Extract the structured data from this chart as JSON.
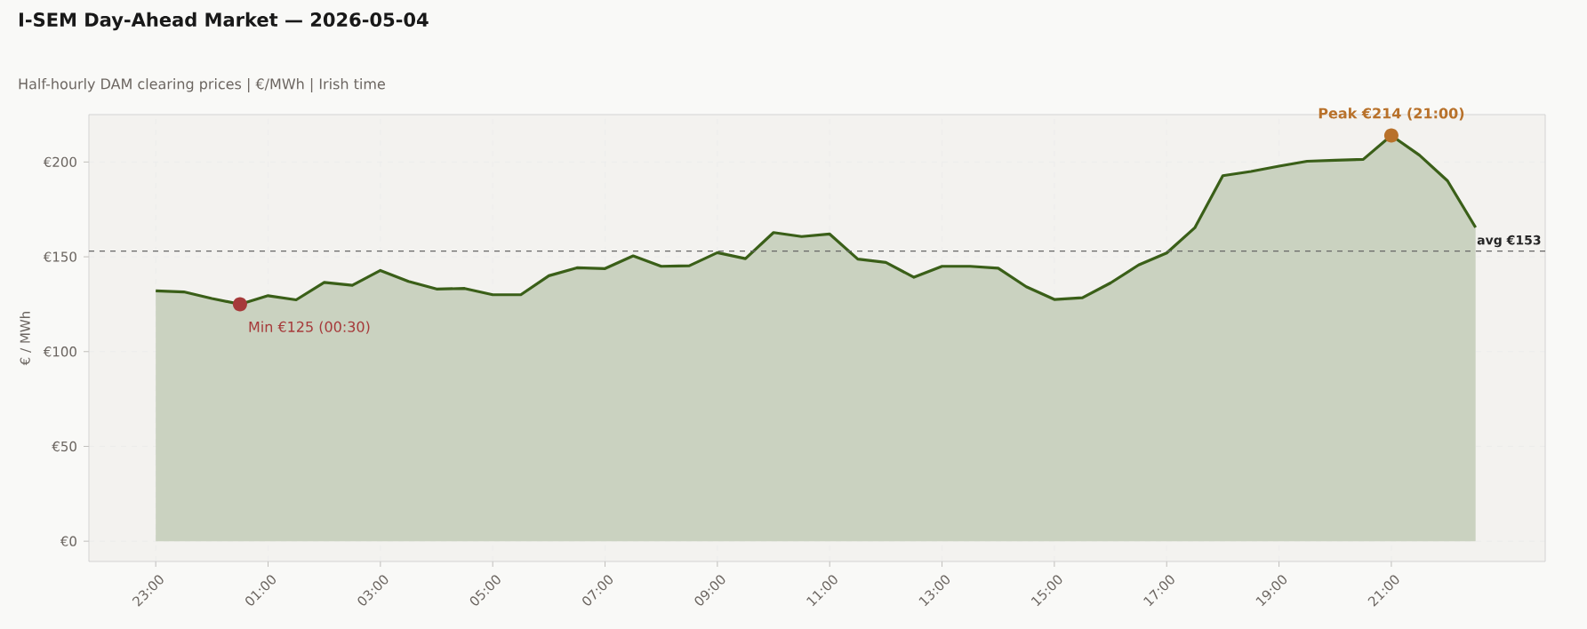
{
  "chart_data": {
    "type": "area",
    "title": "I-SEM Day-Ahead Market — 2026-05-04",
    "subtitle": "Half-hourly DAM clearing prices  |  €/MWh  |  Irish time",
    "ylabel": "€ / MWh",
    "categories": [
      "23:00",
      null,
      null,
      null,
      "01:00",
      null,
      null,
      null,
      "03:00",
      null,
      null,
      null,
      "05:00",
      null,
      null,
      null,
      "07:00",
      null,
      null,
      null,
      "09:00",
      null,
      null,
      null,
      "11:00",
      null,
      null,
      null,
      "13:00",
      null,
      null,
      null,
      "15:00",
      null,
      null,
      null,
      "17:00",
      null,
      null,
      null,
      "19:00",
      null,
      null,
      null,
      "21:00",
      null,
      null,
      null
    ],
    "series": [
      {
        "color": "#3a5f18",
        "values": [
          132,
          131.5,
          128,
          125,
          129.5,
          127.3,
          136.5,
          135,
          142.8,
          137,
          133,
          133.3,
          130,
          130,
          140,
          144.2,
          143.8,
          150.5,
          145,
          145.3,
          152.2,
          149,
          162.8,
          160.7,
          162,
          148.8,
          147,
          139.2,
          145,
          145,
          144,
          134.2,
          127.5,
          128.4,
          136.2,
          145.7,
          152,
          165.3,
          192.8,
          195,
          197.8,
          200.4,
          200.9,
          201.4,
          214,
          203.6,
          190.1,
          165.5
        ]
      }
    ],
    "ylim": [
      -10.7,
      225
    ],
    "yticks": [
      {
        "value": 0,
        "label": "€0"
      },
      {
        "value": 50,
        "label": "€50"
      },
      {
        "value": 100,
        "label": "€100"
      },
      {
        "value": 150,
        "label": "€150"
      },
      {
        "value": 200,
        "label": "€200"
      }
    ],
    "ref_lines": [
      {
        "axis": "y",
        "value": 153,
        "label": "avg €153",
        "color": "#666666",
        "line_style": "dashed"
      }
    ],
    "annotations": [
      "Min  €125  (00:30)",
      {
        "text": "Peak  €214  (21:00)",
        "x": "21:00",
        "y": 214
      }
    ],
    "grid": true
  }
}
